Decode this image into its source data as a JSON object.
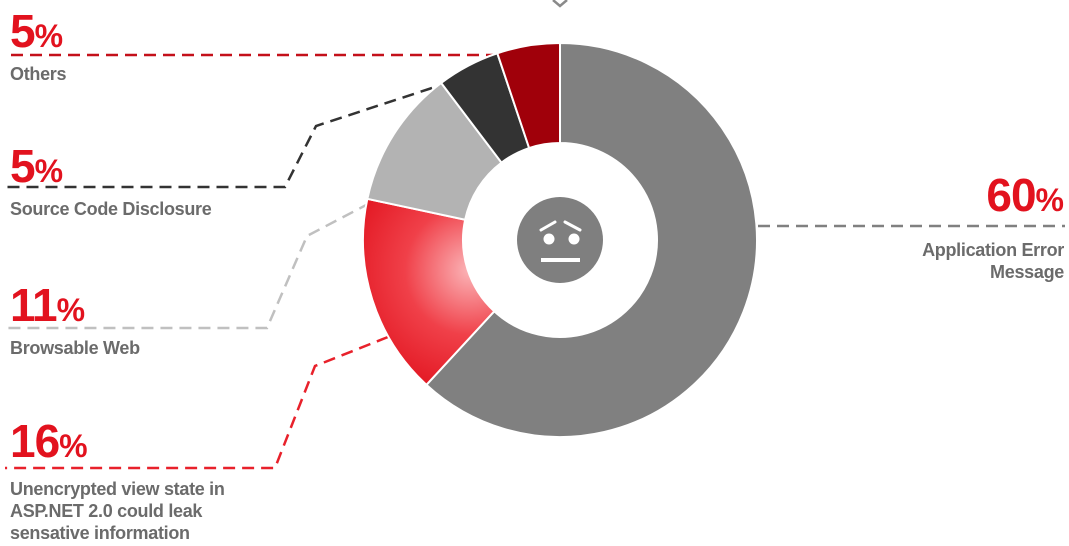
{
  "chart_data": {
    "type": "pie",
    "style": "donut",
    "slices": [
      {
        "label": "Application Error Message",
        "value": 60,
        "display_value": "60",
        "unit": "%",
        "color": "#808080"
      },
      {
        "label": "Unencrypted view state in ASP.NET 2.0 could leak sensative information",
        "value": 16,
        "display_value": "16",
        "unit": "%",
        "color": "#e8212b"
      },
      {
        "label": "Browsable Web",
        "value": 11,
        "display_value": "11",
        "unit": "%",
        "color": "#b3b3b3"
      },
      {
        "label": "Source Code Disclosure",
        "value": 5,
        "display_value": "5",
        "unit": "%",
        "color": "#333333"
      },
      {
        "label": "Others",
        "value": 5,
        "display_value": "5",
        "unit": "%",
        "color": "#a0000a"
      }
    ],
    "center_icon": "worried-face-icon",
    "legend": "callouts"
  }
}
